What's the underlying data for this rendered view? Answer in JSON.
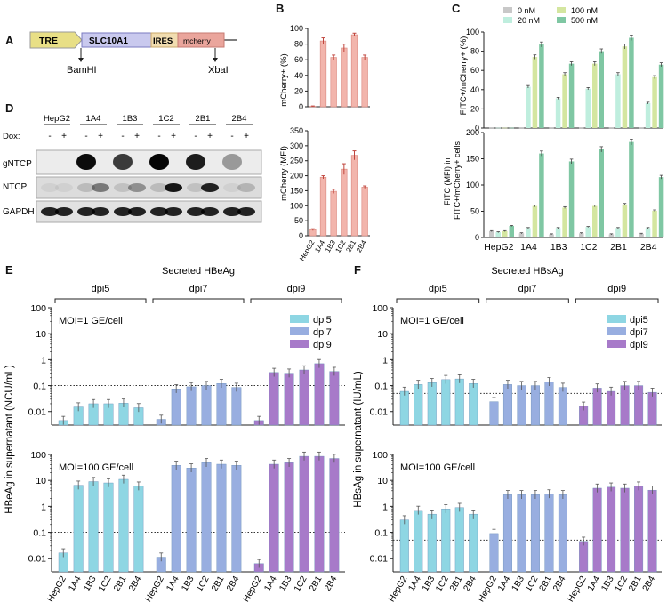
{
  "panel_labels": {
    "A": "A",
    "B": "B",
    "C": "C",
    "D": "D",
    "E": "E",
    "F": "F"
  },
  "construct": {
    "segments": [
      "TRE",
      "SLC10A1",
      "IRES",
      "mcherry"
    ],
    "sites": [
      "BamHI",
      "XbaI"
    ],
    "colors": {
      "tre": "#e8df86",
      "slc": "#c9c9ee",
      "ires": "#f1ddb0",
      "mcherry": "#eaa59c"
    }
  },
  "blot": {
    "groups": [
      "HepG2",
      "1A4",
      "1B3",
      "1C2",
      "2B1",
      "2B4"
    ],
    "dox_label": "Dox:",
    "dox_signs": [
      "-",
      "+"
    ],
    "rows": [
      "gNTCP",
      "NTCP",
      "GAPDH"
    ],
    "gntcp_intensity": [
      0,
      0,
      0.95,
      0,
      0.75,
      0,
      0.98,
      0,
      0.88,
      0,
      0.35,
      0
    ],
    "ntcp_intensity": [
      0.05,
      0.05,
      0.15,
      0.45,
      0.12,
      0.35,
      0.15,
      0.9,
      0.12,
      0.85,
      0.05,
      0.18
    ]
  },
  "colors": {
    "pink": "#f2b5ac",
    "pink_edge": "#d9887e",
    "dpi5": "#8ed6e3",
    "dpi7": "#98aee0",
    "dpi9": "#a77ac9",
    "c0": "#c8c8c8",
    "c20": "#bfeede",
    "c100": "#d4e6a0",
    "c500": "#7fc7a3"
  },
  "chart_data": [
    {
      "id": "B_top",
      "type": "bar",
      "categories": [
        "HepG2",
        "1A4",
        "1B3",
        "1C2",
        "2B1",
        "2B4"
      ],
      "values": [
        0.5,
        84,
        63,
        75,
        92,
        63
      ],
      "errors": [
        0.5,
        4,
        3,
        5,
        2,
        3
      ],
      "ylabel": "mCherry+ (%)",
      "ylim": [
        0,
        100
      ],
      "yticks": [
        0,
        20,
        40,
        60,
        80,
        100
      ]
    },
    {
      "id": "B_bottom",
      "type": "bar",
      "categories": [
        "HepG2",
        "1A4",
        "1B3",
        "1C2",
        "2B1",
        "2B4"
      ],
      "values": [
        20,
        195,
        148,
        222,
        268,
        162
      ],
      "errors": [
        3,
        5,
        7,
        18,
        15,
        4
      ],
      "ylabel": "mCherry (MFI)",
      "ylim": [
        0,
        350
      ],
      "yticks": [
        0,
        50,
        100,
        150,
        200,
        250,
        300,
        350
      ]
    },
    {
      "id": "C_top",
      "type": "bar",
      "categories": [
        "HepG2",
        "1A4",
        "1B3",
        "1C2",
        "2B1",
        "2B4"
      ],
      "legend": [
        "0 nM",
        "100 nM",
        "20 nM",
        "500 nM"
      ],
      "series": [
        {
          "name": "0 nM",
          "values": [
            0.3,
            0.3,
            0.3,
            0.3,
            0.3,
            0.3
          ]
        },
        {
          "name": "20 nM",
          "values": [
            0.3,
            43,
            31,
            41,
            56,
            26
          ]
        },
        {
          "name": "100 nM",
          "values": [
            0.3,
            74,
            56,
            67,
            85,
            53
          ]
        },
        {
          "name": "500 nM",
          "values": [
            0.3,
            87,
            67,
            80,
            94,
            66
          ]
        }
      ],
      "ylabel": "FITC+/mCherry+ (%)",
      "ylim": [
        0,
        100
      ],
      "yticks": [
        0,
        20,
        40,
        60,
        80,
        100
      ]
    },
    {
      "id": "C_bottom",
      "type": "bar",
      "categories": [
        "HepG2",
        "1A4",
        "1B3",
        "1C2",
        "2B1",
        "2B4"
      ],
      "series": [
        {
          "name": "0 nM",
          "values": [
            12,
            8,
            6,
            8,
            6,
            7
          ]
        },
        {
          "name": "20 nM",
          "values": [
            10,
            18,
            18,
            20,
            18,
            18
          ]
        },
        {
          "name": "100 nM",
          "values": [
            12,
            60,
            57,
            60,
            63,
            51
          ]
        },
        {
          "name": "500 nM",
          "values": [
            22,
            160,
            145,
            168,
            182,
            115
          ]
        }
      ],
      "ylabel": "FITC (MFI) in FITC+/mCherry+ cells",
      "ylim": [
        0,
        200
      ],
      "yticks": [
        0,
        50,
        100,
        150,
        200
      ]
    },
    {
      "id": "E",
      "type": "bar",
      "title": "Secreted HBeAg",
      "ylabel": "HBeAg in supernatant (NCU/mL)",
      "groups": [
        "dpi5",
        "dpi7",
        "dpi9"
      ],
      "legend": [
        "dpi5",
        "dpi7",
        "dpi9"
      ],
      "categories": [
        "HepG2",
        "1A4",
        "1B3",
        "1C2",
        "2B1",
        "2B4"
      ],
      "top": {
        "label": "MOI=1 GE/cell",
        "values": [
          [
            0.0045,
            0.015,
            0.02,
            0.02,
            0.021,
            0.014
          ],
          [
            0.005,
            0.075,
            0.09,
            0.1,
            0.12,
            0.085
          ],
          [
            0.0045,
            0.32,
            0.3,
            0.4,
            0.7,
            0.35
          ]
        ],
        "yticks": [
          "0.01",
          "0.1",
          "1",
          "10",
          "100"
        ],
        "dotted": 0.1
      },
      "bottom": {
        "label": "MOI=100 GE/cell",
        "values": [
          [
            0.016,
            6.5,
            9,
            8,
            11,
            6
          ],
          [
            0.011,
            38,
            30,
            48,
            42,
            38
          ],
          [
            0.0062,
            42,
            48,
            85,
            85,
            70
          ]
        ],
        "yticks": [
          "0.01",
          "0.1",
          "1",
          "10",
          "100"
        ],
        "dotted": 0.1
      }
    },
    {
      "id": "F",
      "type": "bar",
      "title": "Secreted HBsAg",
      "ylabel": "HBsAg in supernatant (IU/mL)",
      "groups": [
        "dpi5",
        "dpi7",
        "dpi9"
      ],
      "legend": [
        "dpi5",
        "dpi7",
        "dpi9"
      ],
      "categories": [
        "HepG2",
        "1A4",
        "1B3",
        "1C2",
        "2B1",
        "2B4"
      ],
      "top": {
        "label": "MOI=1 GE/cell",
        "values": [
          [
            0.06,
            0.11,
            0.13,
            0.17,
            0.18,
            0.12
          ],
          [
            0.024,
            0.11,
            0.1,
            0.1,
            0.14,
            0.085
          ],
          [
            0.016,
            0.08,
            0.06,
            0.1,
            0.1,
            0.055
          ]
        ],
        "yticks": [
          "0.01",
          "0.1",
          "1",
          "10",
          "100"
        ],
        "dotted": 0.05
      },
      "bottom": {
        "label": "MOI=100 GE/cell",
        "values": [
          [
            0.3,
            0.7,
            0.5,
            0.8,
            0.9,
            0.5
          ],
          [
            0.09,
            2.8,
            2.8,
            2.8,
            3,
            2.8
          ],
          [
            0.045,
            5,
            5.5,
            5,
            6,
            4.2
          ]
        ],
        "yticks": [
          "0.01",
          "0.1",
          "1",
          "10",
          "100"
        ],
        "dotted": 0.05
      }
    }
  ]
}
